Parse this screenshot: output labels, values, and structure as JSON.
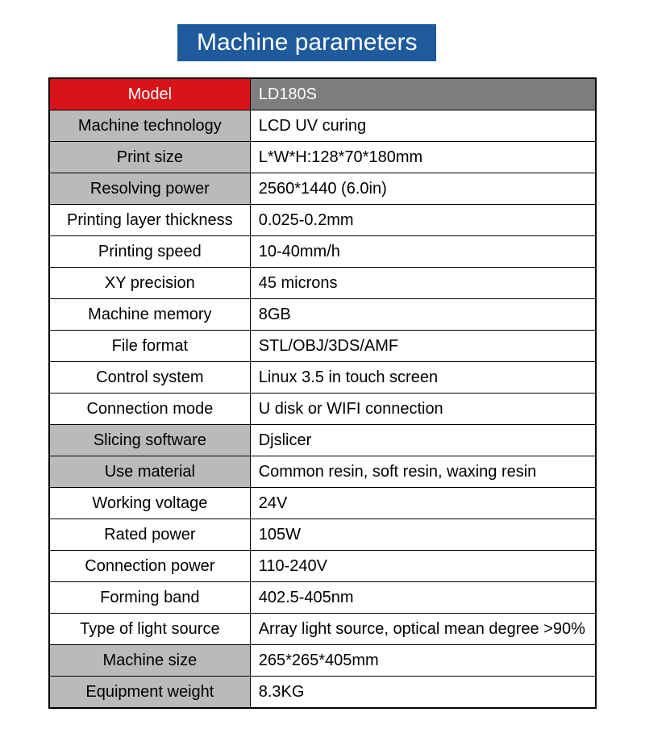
{
  "title": {
    "text": "Machine parameters",
    "bg": "#1e5a9c",
    "color": "#ffffff"
  },
  "header": {
    "label": "Model",
    "value": "LD180S",
    "label_bg": "#d8131a",
    "label_color": "#ffffff",
    "value_bg": "#7d7d7d",
    "value_color": "#ffffff"
  },
  "shaded_bg": "#bababa",
  "plain_bg": "#ffffff",
  "rows": [
    {
      "label": "Machine technology",
      "value": "LCD UV curing",
      "shaded": true
    },
    {
      "label": "Print size",
      "value": "L*W*H:128*70*180mm",
      "shaded": true
    },
    {
      "label": "Resolving power",
      "value": "2560*1440  (6.0in)",
      "shaded": true
    },
    {
      "label": "Printing layer thickness",
      "value": "0.025-0.2mm",
      "shaded": false
    },
    {
      "label": "Printing speed",
      "value": "10-40mm/h",
      "shaded": false
    },
    {
      "label": "XY precision",
      "value": "45 microns",
      "shaded": false
    },
    {
      "label": "Machine memory",
      "value": "8GB",
      "shaded": false
    },
    {
      "label": "File format",
      "value": "STL/OBJ/3DS/AMF",
      "shaded": false
    },
    {
      "label": "Control system",
      "value": "Linux 3.5 in touch screen",
      "shaded": false
    },
    {
      "label": "Connection mode",
      "value": "U disk or WIFI connection",
      "shaded": false
    },
    {
      "label": "Slicing software",
      "value": "Djslicer",
      "shaded": true
    },
    {
      "label": "Use material",
      "value": "Common resin, soft resin, waxing resin",
      "shaded": true
    },
    {
      "label": "Working voltage",
      "value": "24V",
      "shaded": false
    },
    {
      "label": "Rated power",
      "value": "105W",
      "shaded": false
    },
    {
      "label": "Connection power",
      "value": "110-240V",
      "shaded": false
    },
    {
      "label": "Forming band",
      "value": "402.5-405nm",
      "shaded": false
    },
    {
      "label": "Type of light source",
      "value": "Array light source, optical mean degree >90%",
      "shaded": false
    },
    {
      "label": "Machine size",
      "value": "265*265*405mm",
      "shaded": true
    },
    {
      "label": "Equipment weight",
      "value": "8.3KG",
      "shaded": true
    }
  ]
}
